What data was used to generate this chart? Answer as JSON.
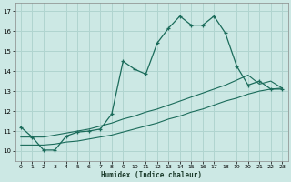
{
  "xlabel": "Humidex (Indice chaleur)",
  "xlim": [
    -0.5,
    23.5
  ],
  "ylim": [
    9.5,
    17.4
  ],
  "xticks": [
    0,
    1,
    2,
    3,
    4,
    5,
    6,
    7,
    8,
    9,
    10,
    11,
    12,
    13,
    14,
    15,
    16,
    17,
    18,
    19,
    20,
    21,
    22,
    23
  ],
  "yticks": [
    10,
    11,
    12,
    13,
    14,
    15,
    16,
    17
  ],
  "bg_color": "#cce8e4",
  "grid_color": "#b0d4cf",
  "line_color": "#1a6b5a",
  "line1_x": [
    0,
    1,
    2,
    3,
    4,
    5,
    6,
    7,
    8,
    9,
    10,
    11,
    12,
    13,
    14,
    15,
    16,
    17,
    18,
    19,
    20,
    21,
    22,
    23
  ],
  "line1_y": [
    11.2,
    10.7,
    10.05,
    10.05,
    10.75,
    10.95,
    11.0,
    11.1,
    11.85,
    14.5,
    14.1,
    13.85,
    15.4,
    16.15,
    16.75,
    16.3,
    16.3,
    16.75,
    15.9,
    14.25,
    13.3,
    13.5,
    13.1,
    13.1
  ],
  "line2_x": [
    0,
    1,
    2,
    3,
    4,
    5,
    6,
    7,
    8,
    9,
    10,
    11,
    12,
    13,
    14,
    15,
    16,
    17,
    18,
    19,
    20,
    21,
    22,
    23
  ],
  "line2_y": [
    10.3,
    10.3,
    10.3,
    10.35,
    10.45,
    10.5,
    10.6,
    10.7,
    10.8,
    10.95,
    11.1,
    11.25,
    11.4,
    11.6,
    11.75,
    11.95,
    12.1,
    12.3,
    12.5,
    12.65,
    12.85,
    13.0,
    13.1,
    13.15
  ],
  "line3_x": [
    0,
    1,
    2,
    3,
    4,
    5,
    6,
    7,
    8,
    9,
    10,
    11,
    12,
    13,
    14,
    15,
    16,
    17,
    18,
    19,
    20,
    21,
    22,
    23
  ],
  "line3_y": [
    10.7,
    10.7,
    10.7,
    10.8,
    10.9,
    11.0,
    11.1,
    11.25,
    11.4,
    11.6,
    11.75,
    11.95,
    12.1,
    12.3,
    12.5,
    12.7,
    12.9,
    13.1,
    13.3,
    13.55,
    13.8,
    13.35,
    13.5,
    13.15
  ]
}
